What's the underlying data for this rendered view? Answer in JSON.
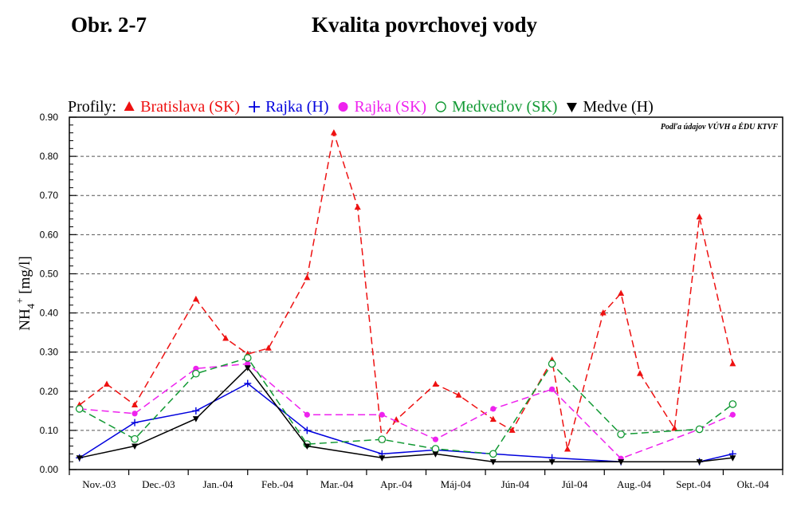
{
  "figure": {
    "number": "Obr. 2-7",
    "title": "Kvalita povrchovej vody"
  },
  "chart_data": {
    "type": "line",
    "legend_prefix": "Profily:",
    "source_note": "Podľa údajov VÚVH a ÉDU KTVF",
    "ylabel": "NH4+ [mg/l]",
    "ylim": [
      0,
      0.9
    ],
    "yticks": [
      "0.00",
      "0.10",
      "0.20",
      "0.30",
      "0.40",
      "0.50",
      "0.60",
      "0.70",
      "0.80",
      "0.90"
    ],
    "grid": "horizontal dashed",
    "legend_position": "top",
    "x_range": [
      0,
      12
    ],
    "categories": [
      "Nov.-03",
      "Dec.-03",
      "Jan.-04",
      "Feb.-04",
      "Mar.-04",
      "Apr.-04",
      "Máj-04",
      "Jún-04",
      "Júl-04",
      "Aug.-04",
      "Sept.-04",
      "Okt.-04"
    ],
    "series": [
      {
        "name": "Bratislava (SK)",
        "color": "#ee1111",
        "marker": "triangle-up",
        "line": "dashed",
        "x": [
          0.17,
          0.63,
          1.1,
          2.13,
          2.63,
          3.0,
          3.35,
          4.0,
          4.45,
          4.85,
          5.26,
          5.5,
          6.16,
          6.55,
          7.13,
          7.45,
          8.12,
          8.38,
          8.98,
          9.28,
          9.6,
          10.18,
          10.6,
          11.16
        ],
        "y": [
          0.165,
          0.218,
          0.165,
          0.435,
          0.335,
          0.295,
          0.31,
          0.49,
          0.86,
          0.67,
          0.075,
          0.127,
          0.218,
          0.19,
          0.128,
          0.1,
          0.28,
          0.052,
          0.4,
          0.45,
          0.245,
          0.105,
          0.645,
          0.27
        ]
      },
      {
        "name": "Rajka (H)",
        "color": "#0000dd",
        "marker": "plus",
        "line": "solid",
        "x": [
          0.17,
          1.1,
          2.13,
          3.0,
          4.0,
          5.26,
          6.16,
          7.13,
          8.12,
          9.28,
          10.6,
          11.16
        ],
        "y": [
          0.03,
          0.12,
          0.15,
          0.22,
          0.1,
          0.04,
          0.05,
          0.04,
          0.03,
          0.02,
          0.02,
          0.04
        ]
      },
      {
        "name": "Rajka (SK)",
        "color": "#ee22ee",
        "marker": "circle-filled",
        "line": "dashed",
        "x": [
          0.17,
          1.1,
          2.13,
          3.0,
          4.0,
          5.26,
          6.16,
          7.13,
          8.12,
          9.28,
          10.6,
          11.16
        ],
        "y": [
          0.155,
          0.143,
          0.258,
          0.27,
          0.14,
          0.14,
          0.077,
          0.155,
          0.205,
          0.028,
          0.103,
          0.14
        ]
      },
      {
        "name": "Medveďov (SK)",
        "color": "#119933",
        "marker": "circle-open",
        "line": "dashed",
        "x": [
          0.17,
          1.1,
          2.13,
          3.0,
          4.0,
          5.26,
          6.16,
          7.13,
          8.12,
          9.28,
          10.6,
          11.16
        ],
        "y": [
          0.155,
          0.078,
          0.245,
          0.285,
          0.065,
          0.077,
          0.053,
          0.04,
          0.27,
          0.09,
          0.103,
          0.167
        ]
      },
      {
        "name": "Medve (H)",
        "color": "#000000",
        "marker": "triangle-down",
        "line": "solid",
        "x": [
          0.17,
          1.1,
          2.13,
          3.0,
          4.0,
          5.26,
          6.16,
          7.13,
          8.12,
          9.28,
          10.6,
          11.16
        ],
        "y": [
          0.03,
          0.06,
          0.13,
          0.26,
          0.06,
          0.03,
          0.04,
          0.02,
          0.02,
          0.02,
          0.02,
          0.03
        ]
      }
    ]
  }
}
